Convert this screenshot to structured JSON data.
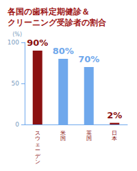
{
  "chart_data": {
    "type": "bar",
    "title": "各国の歯科定期健診＆\nクリーニング受診者の割合",
    "y_label": "(%)",
    "categories": [
      "スウェーデン",
      "米国",
      "英国",
      "日本"
    ],
    "values": [
      90,
      80,
      70,
      2
    ],
    "value_labels": [
      "90%",
      "80%",
      "70%",
      "2%"
    ],
    "colors": [
      "#8b1111",
      "#6fa8ec",
      "#6fa8ec",
      "#8b1111"
    ],
    "ylim": [
      0,
      100
    ],
    "yticks": [
      0,
      50,
      100
    ],
    "grid": false,
    "data_labels": true
  }
}
